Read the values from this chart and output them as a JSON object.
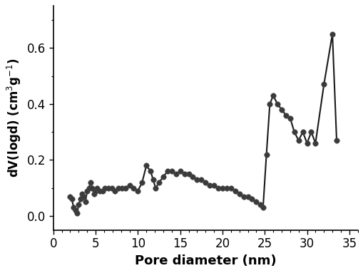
{
  "x": [
    2.0,
    2.2,
    2.4,
    2.6,
    2.8,
    3.0,
    3.2,
    3.4,
    3.6,
    3.8,
    4.0,
    4.2,
    4.4,
    4.6,
    4.8,
    5.0,
    5.2,
    5.5,
    5.8,
    6.1,
    6.5,
    6.9,
    7.3,
    7.7,
    8.1,
    8.5,
    9.0,
    9.5,
    10.0,
    10.5,
    11.0,
    11.5,
    11.8,
    12.1,
    12.5,
    13.0,
    13.5,
    14.0,
    14.5,
    15.0,
    15.5,
    16.0,
    16.5,
    17.0,
    17.5,
    18.0,
    18.5,
    19.0,
    19.5,
    20.0,
    20.5,
    21.0,
    21.5,
    22.0,
    22.5,
    23.0,
    23.5,
    24.0,
    24.5,
    24.8,
    25.2,
    25.6,
    26.0,
    26.5,
    27.0,
    27.5,
    28.0,
    28.5,
    29.0,
    29.5,
    30.0,
    30.5,
    31.0,
    32.0,
    33.0,
    33.5
  ],
  "y": [
    0.07,
    0.06,
    0.03,
    0.02,
    0.01,
    0.04,
    0.06,
    0.08,
    0.07,
    0.05,
    0.09,
    0.1,
    0.12,
    0.1,
    0.08,
    0.09,
    0.1,
    0.09,
    0.09,
    0.1,
    0.1,
    0.1,
    0.09,
    0.1,
    0.1,
    0.1,
    0.11,
    0.1,
    0.09,
    0.12,
    0.18,
    0.16,
    0.13,
    0.1,
    0.12,
    0.14,
    0.16,
    0.16,
    0.15,
    0.16,
    0.15,
    0.15,
    0.14,
    0.13,
    0.13,
    0.12,
    0.11,
    0.11,
    0.1,
    0.1,
    0.1,
    0.1,
    0.09,
    0.08,
    0.07,
    0.07,
    0.06,
    0.05,
    0.04,
    0.03,
    0.22,
    0.4,
    0.43,
    0.4,
    0.38,
    0.36,
    0.35,
    0.3,
    0.27,
    0.3,
    0.26,
    0.3,
    0.26,
    0.47,
    0.65,
    0.27
  ],
  "xlabel": "Pore diameter (nm)",
  "ylabel": "dV(logd) (cm$^3$g$^{-1}$)",
  "xlim": [
    1,
    36
  ],
  "ylim": [
    -0.05,
    0.75
  ],
  "xticks": [
    0,
    5,
    10,
    15,
    20,
    25,
    30,
    35
  ],
  "yticks": [
    0.0,
    0.2,
    0.4,
    0.6
  ],
  "marker_color": "#3a3a3a",
  "line_color": "#1a1a1a",
  "marker_size": 5.5,
  "line_width": 1.5,
  "background_color": "#ffffff",
  "xlabel_fontsize": 13,
  "ylabel_fontsize": 12,
  "tick_fontsize": 12
}
